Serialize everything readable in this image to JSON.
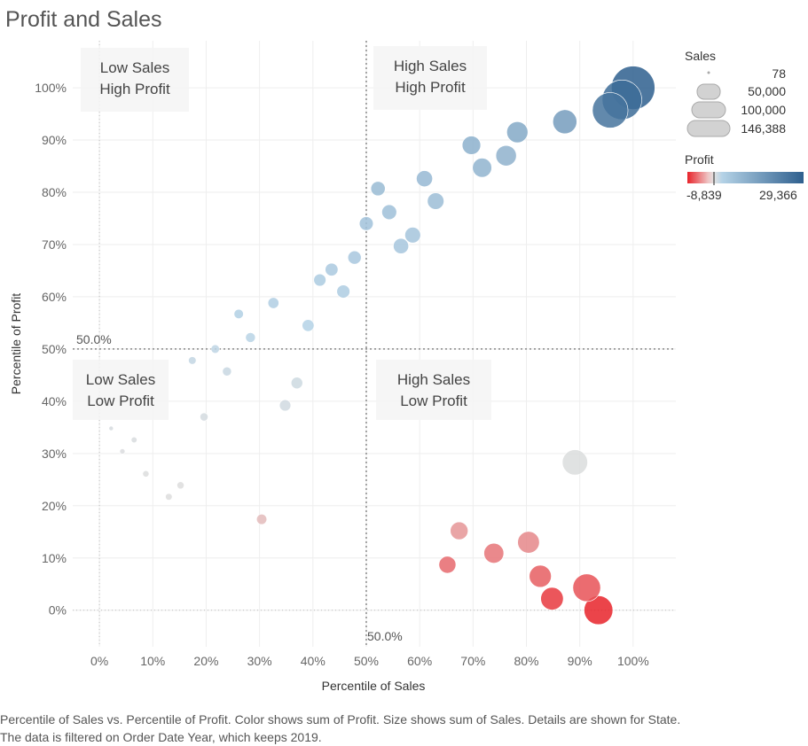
{
  "chart_data": {
    "type": "scatter",
    "title": "Profit and Sales",
    "xlabel": "Percentile of Sales",
    "ylabel": "Percentile of Profit",
    "xlim": [
      -0.05,
      1.08
    ],
    "ylim": [
      -0.07,
      1.09
    ],
    "x_ticks": [
      0,
      0.1,
      0.2,
      0.3,
      0.4,
      0.5,
      0.6,
      0.7,
      0.8,
      0.9,
      1.0
    ],
    "x_tick_labels": [
      "0%",
      "10%",
      "20%",
      "30%",
      "40%",
      "50%",
      "60%",
      "70%",
      "80%",
      "90%",
      "100%"
    ],
    "y_ticks": [
      0,
      0.1,
      0.2,
      0.3,
      0.4,
      0.5,
      0.6,
      0.7,
      0.8,
      0.9,
      1.0
    ],
    "y_tick_labels": [
      "0%",
      "10%",
      "20%",
      "30%",
      "40%",
      "50%",
      "60%",
      "70%",
      "80%",
      "90%",
      "100%"
    ],
    "grid": true,
    "reference_lines": {
      "x": 0.5,
      "y": 0.5,
      "x_label": "50.0%",
      "y_label": "50.0%"
    },
    "quadrants": [
      {
        "line1": "Low Sales",
        "line2": "High Profit",
        "position": "top-left"
      },
      {
        "line1": "High Sales",
        "line2": "High Profit",
        "position": "top-right"
      },
      {
        "line1": "Low Sales",
        "line2": "Low Profit",
        "position": "bottom-left"
      },
      {
        "line1": "High Sales",
        "line2": "Low Profit",
        "position": "bottom-right"
      }
    ],
    "size_legend": {
      "title": "Sales",
      "values": [
        "78",
        "50,000",
        "100,000",
        "146,388"
      ]
    },
    "color_legend": {
      "title": "Profit",
      "min_label": "-8,839",
      "max_label": "29,366",
      "neg_color": "#e8232a",
      "mid_color": "#dddddd",
      "light_pos_color": "#b4d2e6",
      "pos_color": "#2e5f8e"
    },
    "points": [
      {
        "x": 1.0,
        "y": 1.0,
        "sales": 146388,
        "profit": 29366
      },
      {
        "x": 0.979,
        "y": 0.977,
        "sales": 120000,
        "profit": 26000
      },
      {
        "x": 0.957,
        "y": 0.957,
        "sales": 95000,
        "profit": 24000
      },
      {
        "x": 0.872,
        "y": 0.935,
        "sales": 40000,
        "profit": 14000
      },
      {
        "x": 0.783,
        "y": 0.915,
        "sales": 30000,
        "profit": 11000
      },
      {
        "x": 0.697,
        "y": 0.89,
        "sales": 22000,
        "profit": 9500
      },
      {
        "x": 0.762,
        "y": 0.87,
        "sales": 28000,
        "profit": 9000
      },
      {
        "x": 0.717,
        "y": 0.847,
        "sales": 24000,
        "profit": 8500
      },
      {
        "x": 0.609,
        "y": 0.826,
        "sales": 16000,
        "profit": 7500
      },
      {
        "x": 0.522,
        "y": 0.807,
        "sales": 12000,
        "profit": 7000
      },
      {
        "x": 0.63,
        "y": 0.783,
        "sales": 17000,
        "profit": 6500
      },
      {
        "x": 0.543,
        "y": 0.762,
        "sales": 13000,
        "profit": 6000
      },
      {
        "x": 0.5,
        "y": 0.74,
        "sales": 11000,
        "profit": 5500
      },
      {
        "x": 0.587,
        "y": 0.718,
        "sales": 15000,
        "profit": 5000
      },
      {
        "x": 0.565,
        "y": 0.697,
        "sales": 14000,
        "profit": 4700
      },
      {
        "x": 0.478,
        "y": 0.675,
        "sales": 10000,
        "profit": 4400
      },
      {
        "x": 0.435,
        "y": 0.652,
        "sales": 9000,
        "profit": 4000
      },
      {
        "x": 0.413,
        "y": 0.632,
        "sales": 8000,
        "profit": 3700
      },
      {
        "x": 0.457,
        "y": 0.61,
        "sales": 9500,
        "profit": 3400
      },
      {
        "x": 0.326,
        "y": 0.588,
        "sales": 6000,
        "profit": 3100
      },
      {
        "x": 0.261,
        "y": 0.567,
        "sales": 4000,
        "profit": 2800
      },
      {
        "x": 0.391,
        "y": 0.545,
        "sales": 7500,
        "profit": 2500
      },
      {
        "x": 0.283,
        "y": 0.522,
        "sales": 4500,
        "profit": 2200
      },
      {
        "x": 0.217,
        "y": 0.5,
        "sales": 3000,
        "profit": 1900
      },
      {
        "x": 0.174,
        "y": 0.478,
        "sales": 2200,
        "profit": 1600
      },
      {
        "x": 0.239,
        "y": 0.457,
        "sales": 3500,
        "profit": 1300
      },
      {
        "x": 0.37,
        "y": 0.435,
        "sales": 7000,
        "profit": 1000
      },
      {
        "x": 0.348,
        "y": 0.392,
        "sales": 6500,
        "profit": 800
      },
      {
        "x": 0.196,
        "y": 0.37,
        "sales": 2600,
        "profit": 600
      },
      {
        "x": 0.022,
        "y": 0.348,
        "sales": 300,
        "profit": 400
      },
      {
        "x": 0.065,
        "y": 0.326,
        "sales": 900,
        "profit": 300
      },
      {
        "x": 0.043,
        "y": 0.304,
        "sales": 600,
        "profit": 200
      },
      {
        "x": 0.891,
        "y": 0.283,
        "sales": 45000,
        "profit": 100
      },
      {
        "x": 0.087,
        "y": 0.261,
        "sales": 1200,
        "profit": 50
      },
      {
        "x": 0.152,
        "y": 0.239,
        "sales": 1800,
        "profit": 20
      },
      {
        "x": 0.13,
        "y": 0.217,
        "sales": 1500,
        "profit": 10
      },
      {
        "x": 0.304,
        "y": 0.174,
        "sales": 5000,
        "profit": -100
      },
      {
        "x": 0.674,
        "y": 0.152,
        "sales": 20000,
        "profit": -1200
      },
      {
        "x": 0.804,
        "y": 0.13,
        "sales": 32000,
        "profit": -1800
      },
      {
        "x": 0.739,
        "y": 0.109,
        "sales": 26000,
        "profit": -2800
      },
      {
        "x": 0.652,
        "y": 0.087,
        "sales": 18000,
        "profit": -3500
      },
      {
        "x": 0.826,
        "y": 0.065,
        "sales": 33000,
        "profit": -4200
      },
      {
        "x": 0.913,
        "y": 0.043,
        "sales": 55000,
        "profit": -5000
      },
      {
        "x": 0.848,
        "y": 0.022,
        "sales": 35000,
        "profit": -7000
      },
      {
        "x": 0.935,
        "y": 0.0,
        "sales": 60000,
        "profit": -8839
      }
    ]
  },
  "caption": "Percentile of Sales vs. Percentile of Profit.  Color shows sum of Profit.  Size shows sum of Sales.  Details are shown for State. The data is filtered on Order Date Year, which keeps 2019."
}
